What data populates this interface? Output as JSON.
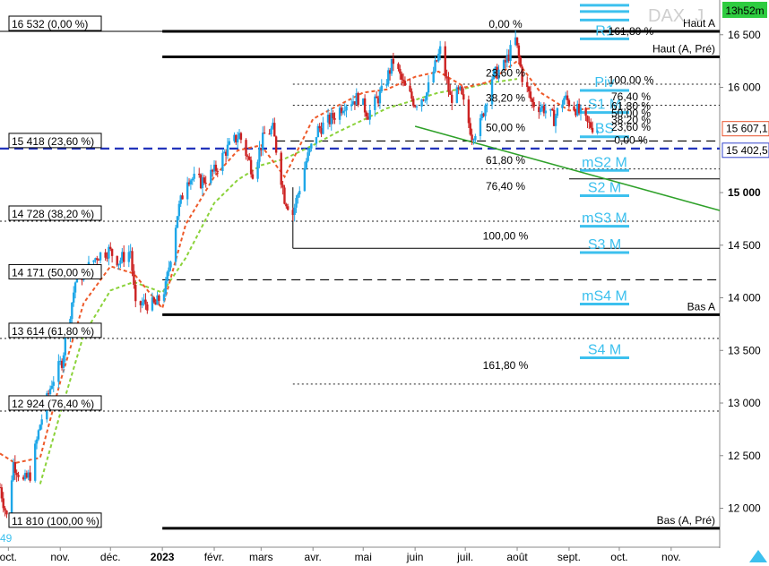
{
  "header": {
    "title": "DAX, J",
    "time_badge": "13h52m",
    "year_label": "2023",
    "bottom_left_fragment": "49"
  },
  "chart_data": {
    "type": "candlestick",
    "ylim": [
      11630,
      16830
    ],
    "xlim": [
      "2022-09-26",
      "2023-11-30"
    ],
    "y_ticks": [
      {
        "v": 16500,
        "label": "16 500"
      },
      {
        "v": 16000,
        "label": "16 000"
      },
      {
        "v": 15000,
        "label": "15 000",
        "bold": true
      },
      {
        "v": 14500,
        "label": "14 500"
      },
      {
        "v": 14000,
        "label": "14 000"
      },
      {
        "v": 13500,
        "label": "13 500"
      },
      {
        "v": 13000,
        "label": "13 000"
      },
      {
        "v": 12500,
        "label": "12 500"
      },
      {
        "v": 12000,
        "label": "12 000"
      }
    ],
    "x_ticks": [
      {
        "d": "2022-10-01",
        "label": "oct."
      },
      {
        "d": "2022-11-01",
        "label": "nov."
      },
      {
        "d": "2022-12-01",
        "label": "déc."
      },
      {
        "d": "2023-01-01",
        "label": "2023",
        "bold": true
      },
      {
        "d": "2023-02-01",
        "label": "févr."
      },
      {
        "d": "2023-03-01",
        "label": "mars"
      },
      {
        "d": "2023-04-01",
        "label": "avr."
      },
      {
        "d": "2023-05-01",
        "label": "mai"
      },
      {
        "d": "2023-06-01",
        "label": "juin"
      },
      {
        "d": "2023-07-01",
        "label": "juil."
      },
      {
        "d": "2023-08-01",
        "label": "août"
      },
      {
        "d": "2023-09-01",
        "label": "sept."
      },
      {
        "d": "2023-10-01",
        "label": "oct."
      },
      {
        "d": "2023-11-01",
        "label": "nov."
      }
    ],
    "price_tags": [
      {
        "value": 15607,
        "label": "15 607,1",
        "color": "#e8502a"
      },
      {
        "value": 15402,
        "label": "15 402,5",
        "color": "#3344cc"
      }
    ],
    "left_fib_labels": [
      {
        "value": 16532,
        "label": "16 532 (0,00 %)"
      },
      {
        "value": 15418,
        "label": "15 418 (23,60 %)"
      },
      {
        "value": 14728,
        "label": "14 728 (38,20 %)"
      },
      {
        "value": 14171,
        "label": "14 171 (50,00 %)"
      },
      {
        "value": 13614,
        "label": "13 614 (61,80 %)"
      },
      {
        "value": 12924,
        "label": "12 924 (76,40 %)"
      },
      {
        "value": 11810,
        "label": "11 810 (100,00 %)"
      }
    ],
    "thick_levels": [
      {
        "value": 16532,
        "from": "2023-01-01",
        "label": "Haut A"
      },
      {
        "value": 16290,
        "from": "2023-01-01",
        "label": "Haut (A, Pré)"
      },
      {
        "value": 13840,
        "from": "2023-01-01",
        "label": "Bas A"
      },
      {
        "value": 11810,
        "from": "2023-01-01",
        "label": "Bas (A, Pré)"
      }
    ],
    "dashed_levels": [
      {
        "value": 15418,
        "from": "2022-09-26",
        "color": "#2233bb",
        "width": 2.2
      },
      {
        "value": 15490,
        "from": "2023-03-10",
        "color": "#000",
        "width": 1.2
      },
      {
        "value": 14171,
        "from": "2023-01-01",
        "color": "#000",
        "width": 1.2
      }
    ],
    "dotted_levels": [
      16532,
      14728,
      13614,
      12924,
      16030,
      15830,
      15225,
      13180
    ],
    "center_fib_labels": [
      {
        "value": 16532,
        "label": "0,00 %"
      },
      {
        "value": 16070,
        "label": "23,60 %"
      },
      {
        "value": 15830,
        "label": "38,20 %"
      },
      {
        "value": 15550,
        "label": "50,00 %"
      },
      {
        "value": 15240,
        "label": "61,80 %"
      },
      {
        "value": 14990,
        "label": "76,40 %"
      },
      {
        "value": 14520,
        "label": "100,00 %"
      },
      {
        "value": 13290,
        "label": "161,80 %"
      }
    ],
    "right_fib_labels": [
      {
        "value": 16532,
        "label": "161,80 %"
      },
      {
        "value": 16070,
        "label": "100,00 %"
      },
      {
        "value": 15910,
        "label": "76,40 %"
      },
      {
        "value": 15820,
        "label": "61,80 %"
      },
      {
        "value": 15755,
        "label": "50,00 %"
      },
      {
        "value": 15690,
        "label": "38,20 %"
      },
      {
        "value": 15620,
        "label": "23,60 %"
      },
      {
        "value": 15500,
        "label": "0,00 %"
      }
    ],
    "pivots": [
      {
        "label": "R1",
        "value": 16520
      },
      {
        "label": "Piv",
        "value": 16030
      },
      {
        "label": "S1 M",
        "value": 15820
      },
      {
        "label": "BS",
        "value": 15590
      },
      {
        "label": "mS2 M",
        "value": 15270
      },
      {
        "label": "S2 M",
        "value": 15030
      },
      {
        "label": "mS3 M",
        "value": 14740
      },
      {
        "label": "S3 M",
        "value": 14490
      },
      {
        "label": "mS4 M",
        "value": 14000
      },
      {
        "label": "S4 M",
        "value": 13490
      }
    ],
    "trendline": {
      "start": [
        "2023-06-01",
        15630
      ],
      "end": [
        "2023-11-30",
        14830
      ],
      "color": "#2fa12a"
    },
    "ema_slow": [
      [
        "2022-10-20",
        12230
      ],
      [
        "2022-11-01",
        12900
      ],
      [
        "2022-11-15",
        13650
      ],
      [
        "2022-12-01",
        14070
      ],
      [
        "2022-12-15",
        14150
      ],
      [
        "2023-01-01",
        14050
      ],
      [
        "2023-01-15",
        14380
      ],
      [
        "2023-02-01",
        14900
      ],
      [
        "2023-02-15",
        15120
      ],
      [
        "2023-03-01",
        15260
      ],
      [
        "2023-03-15",
        15320
      ],
      [
        "2023-04-01",
        15450
      ],
      [
        "2023-04-15",
        15570
      ],
      [
        "2023-05-01",
        15690
      ],
      [
        "2023-05-15",
        15800
      ],
      [
        "2023-06-01",
        15880
      ],
      [
        "2023-06-15",
        15950
      ],
      [
        "2023-07-01",
        15990
      ],
      [
        "2023-07-15",
        16040
      ],
      [
        "2023-08-01",
        16080
      ]
    ],
    "ema_fast": [
      [
        "2022-09-26",
        12520
      ],
      [
        "2022-10-05",
        12430
      ],
      [
        "2022-10-20",
        12480
      ],
      [
        "2022-11-01",
        13200
      ],
      [
        "2022-11-15",
        13950
      ],
      [
        "2022-12-01",
        14300
      ],
      [
        "2022-12-15",
        14230
      ],
      [
        "2023-01-01",
        13900
      ],
      [
        "2023-01-15",
        14700
      ],
      [
        "2023-02-01",
        15150
      ],
      [
        "2023-02-15",
        15400
      ],
      [
        "2023-03-01",
        15450
      ],
      [
        "2023-03-15",
        15150
      ],
      [
        "2023-04-01",
        15700
      ],
      [
        "2023-04-15",
        15820
      ],
      [
        "2023-05-01",
        15950
      ],
      [
        "2023-05-15",
        15980
      ],
      [
        "2023-06-01",
        16100
      ],
      [
        "2023-06-15",
        16150
      ],
      [
        "2023-07-01",
        16000
      ],
      [
        "2023-07-15",
        16050
      ],
      [
        "2023-08-01",
        16250
      ],
      [
        "2023-08-15",
        15950
      ],
      [
        "2023-09-01",
        15780
      ],
      [
        "2023-09-15",
        15800
      ]
    ],
    "close_path": [
      [
        "2022-09-26",
        12200
      ],
      [
        "2022-09-30",
        11920
      ],
      [
        "2022-10-04",
        12430
      ],
      [
        "2022-10-10",
        12250
      ],
      [
        "2022-10-14",
        12320
      ],
      [
        "2022-10-20",
        12800
      ],
      [
        "2022-10-27",
        13200
      ],
      [
        "2022-11-02",
        13400
      ],
      [
        "2022-11-10",
        14150
      ],
      [
        "2022-11-16",
        14250
      ],
      [
        "2022-11-23",
        14400
      ],
      [
        "2022-11-30",
        14450
      ],
      [
        "2022-12-06",
        14350
      ],
      [
        "2022-12-13",
        14450
      ],
      [
        "2022-12-16",
        13900
      ],
      [
        "2022-12-20",
        13950
      ],
      [
        "2022-12-28",
        13930
      ],
      [
        "2023-01-03",
        14100
      ],
      [
        "2023-01-10",
        14800
      ],
      [
        "2023-01-16",
        15150
      ],
      [
        "2023-01-24",
        15100
      ],
      [
        "2023-02-01",
        15200
      ],
      [
        "2023-02-08",
        15400
      ],
      [
        "2023-02-16",
        15550
      ],
      [
        "2023-02-24",
        15200
      ],
      [
        "2023-03-03",
        15550
      ],
      [
        "2023-03-08",
        15600
      ],
      [
        "2023-03-15",
        14950
      ],
      [
        "2023-03-20",
        14800
      ],
      [
        "2023-03-28",
        15300
      ],
      [
        "2023-04-04",
        15600
      ],
      [
        "2023-04-12",
        15700
      ],
      [
        "2023-04-20",
        15850
      ],
      [
        "2023-04-28",
        15900
      ],
      [
        "2023-05-04",
        15750
      ],
      [
        "2023-05-12",
        15950
      ],
      [
        "2023-05-19",
        16250
      ],
      [
        "2023-05-26",
        15990
      ],
      [
        "2023-06-01",
        15850
      ],
      [
        "2023-06-08",
        15950
      ],
      [
        "2023-06-16",
        16350
      ],
      [
        "2023-06-22",
        15900
      ],
      [
        "2023-06-28",
        15950
      ],
      [
        "2023-07-05",
        15550
      ],
      [
        "2023-07-10",
        15650
      ],
      [
        "2023-07-17",
        16100
      ],
      [
        "2023-07-24",
        16200
      ],
      [
        "2023-07-31",
        16450
      ],
      [
        "2023-08-04",
        16100
      ],
      [
        "2023-08-10",
        15850
      ],
      [
        "2023-08-17",
        15800
      ],
      [
        "2023-08-23",
        15700
      ],
      [
        "2023-08-29",
        15900
      ],
      [
        "2023-09-05",
        15800
      ],
      [
        "2023-09-12",
        15650
      ],
      [
        "2023-09-18",
        15607
      ]
    ]
  }
}
